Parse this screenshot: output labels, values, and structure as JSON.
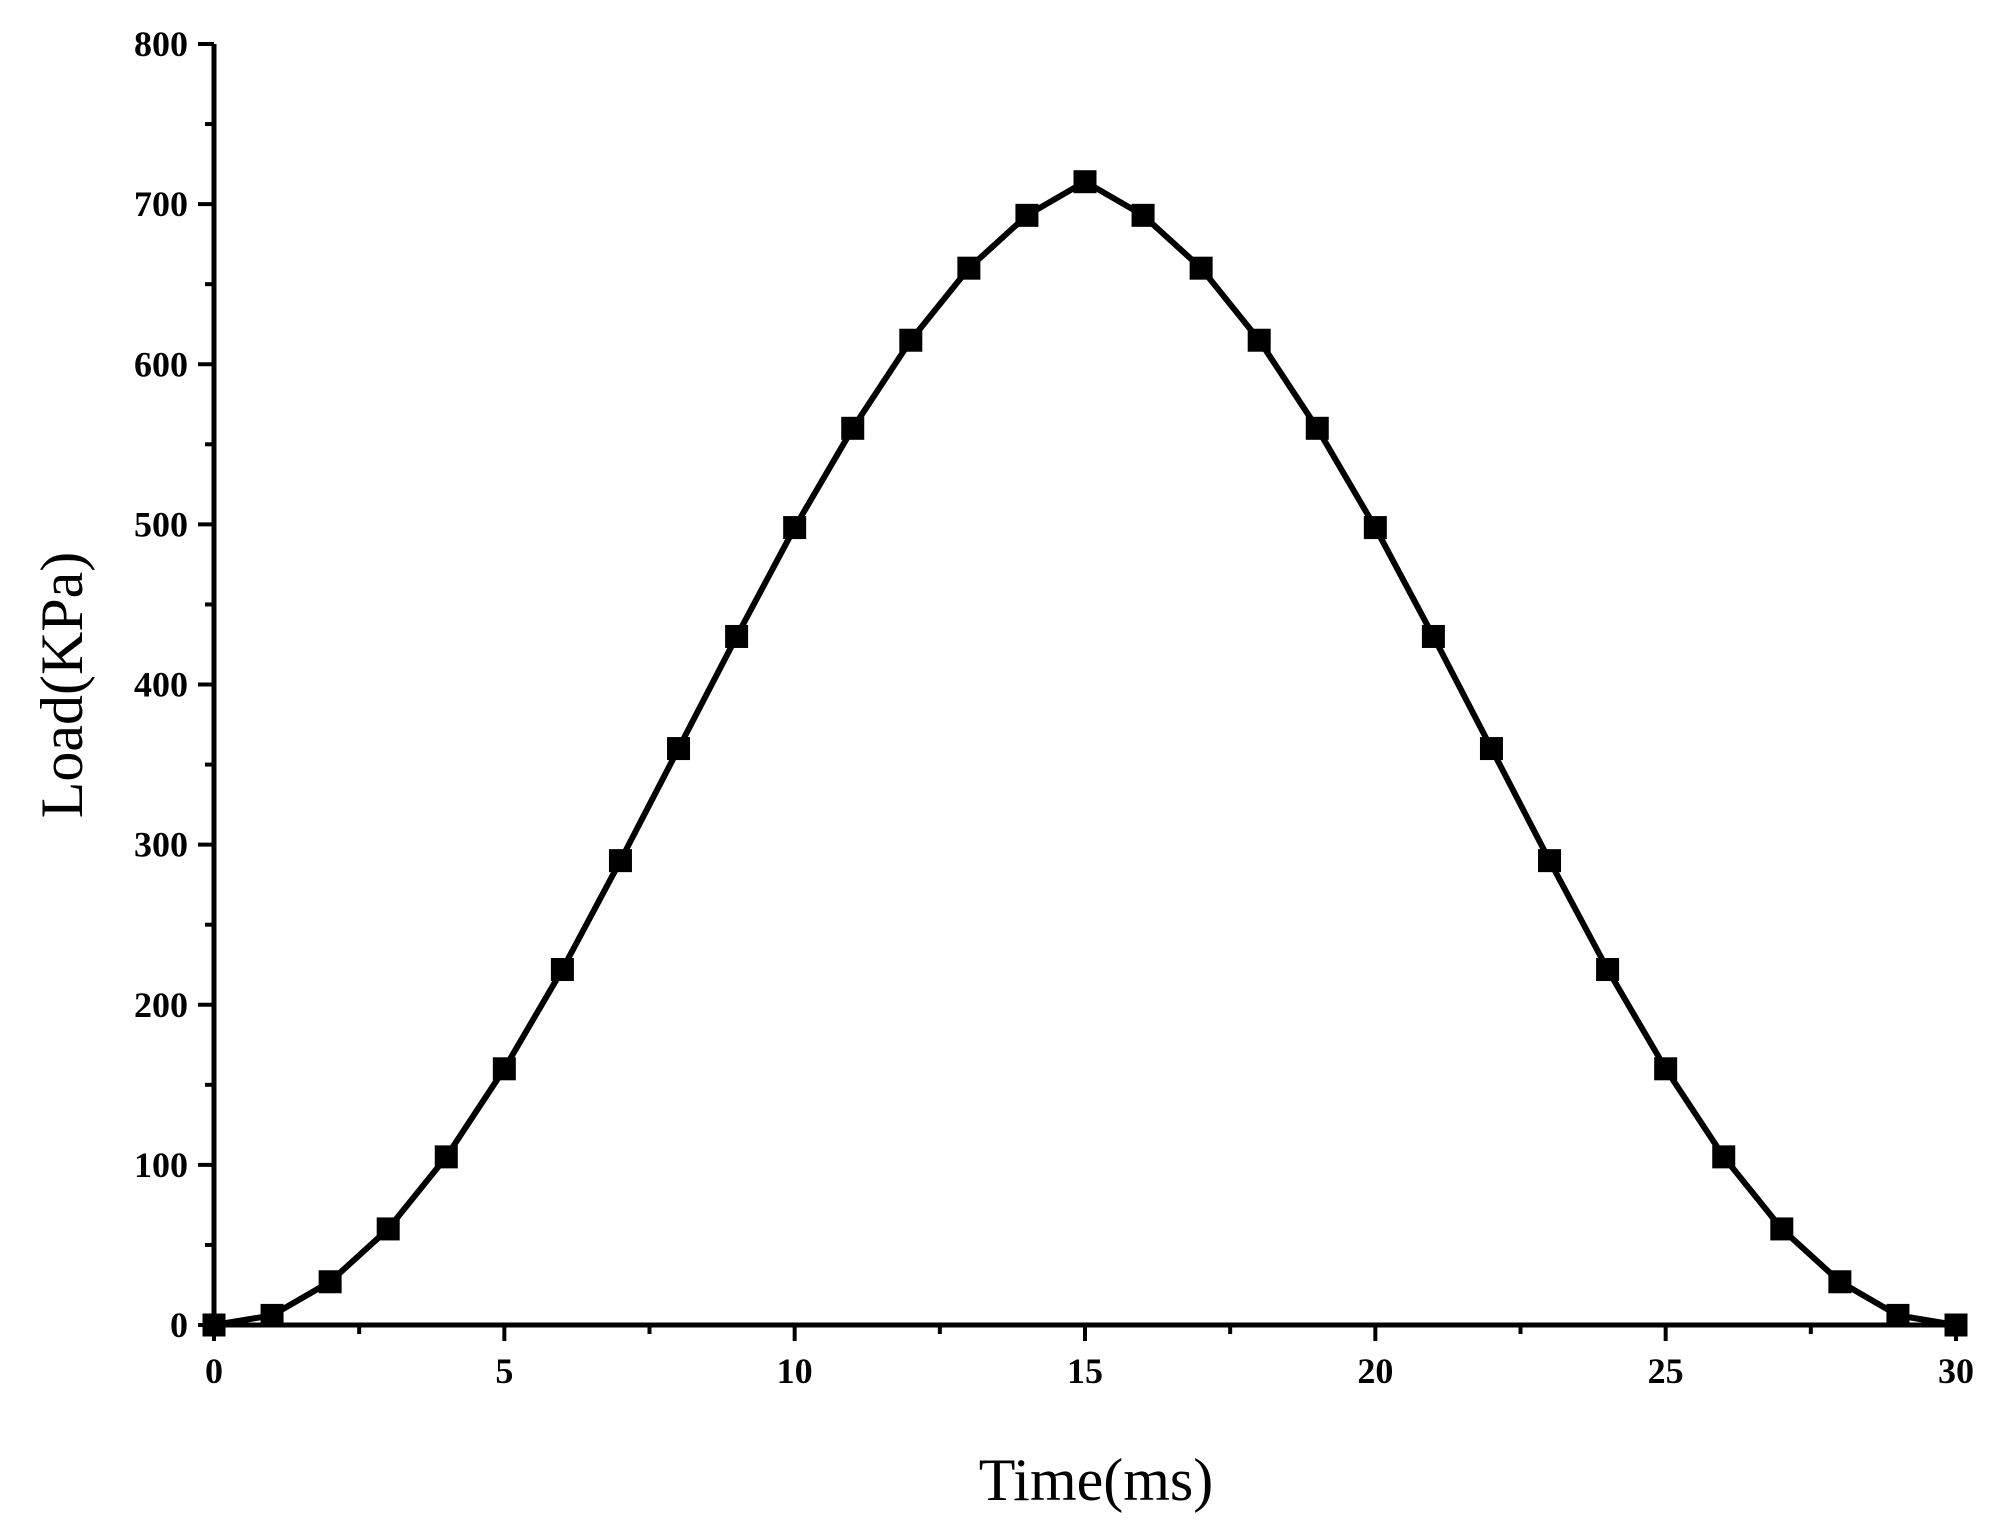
{
  "chart_data": {
    "type": "line",
    "title": "",
    "xlabel": "Time(ms)",
    "ylabel": "Load(KPa)",
    "xlim": [
      0,
      30
    ],
    "ylim": [
      0,
      800
    ],
    "xticks": [
      0,
      5,
      10,
      15,
      20,
      25,
      30
    ],
    "yticks": [
      0,
      100,
      200,
      300,
      400,
      500,
      600,
      700,
      800
    ],
    "grid": false,
    "legend": "none",
    "colors": {
      "line": "#000000",
      "marker": "#000000",
      "axis": "#000000"
    },
    "marker": "square",
    "series": [
      {
        "x": [
          0,
          1,
          2,
          3,
          4,
          5,
          6,
          7,
          8,
          9,
          10,
          11,
          12,
          13,
          14,
          15,
          16,
          17,
          18,
          19,
          20,
          21,
          22,
          23,
          24,
          25,
          26,
          27,
          28,
          29,
          30
        ],
        "values": [
          0,
          6,
          27,
          60,
          105,
          160,
          222,
          290,
          360,
          430,
          498,
          560,
          615,
          660,
          693,
          714,
          693,
          660,
          615,
          560,
          498,
          430,
          360,
          290,
          222,
          160,
          105,
          60,
          27,
          6,
          0
        ]
      }
    ]
  }
}
